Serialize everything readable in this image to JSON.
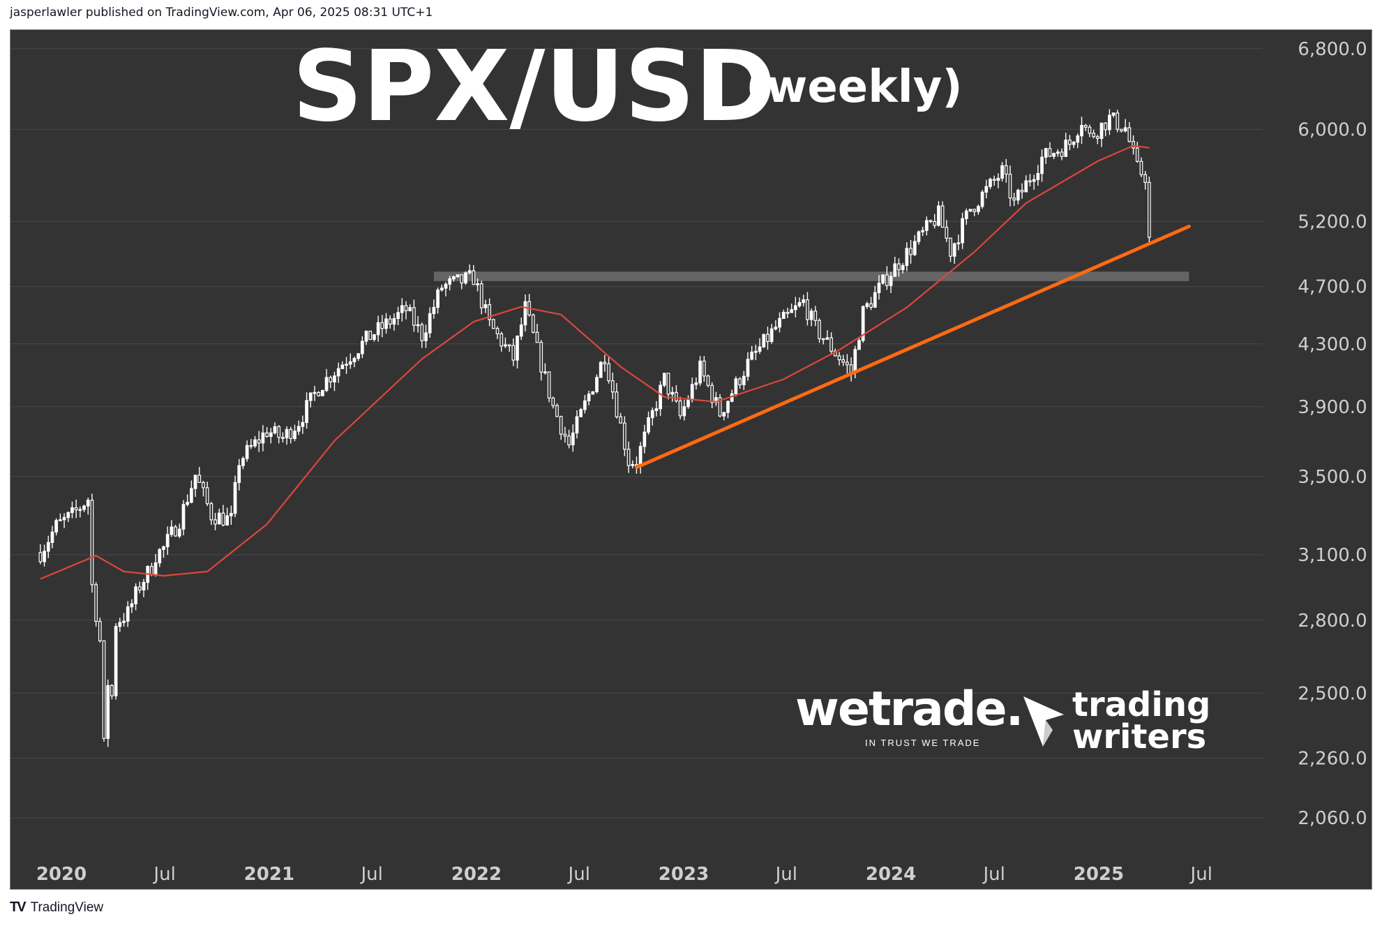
{
  "header": {
    "text": "jasperlawler published on TradingView.com, Apr 06, 2025 08:31 UTC+1"
  },
  "footer": {
    "brand_logo": "TV",
    "brand_name": "TradingView"
  },
  "watermarks": {
    "wetrade_name": "wetrade.",
    "wetrade_tagline": "IN TRUST WE TRADE",
    "trading_writers_line1": "trading",
    "trading_writers_line2": "writers"
  },
  "colors": {
    "background": "#333333",
    "candle": "#ffffff",
    "moving_average": "#e0463a",
    "trendline": "#ff6a13",
    "resistance_zone": "#6a6a6a",
    "gridline": "#4a4a4a",
    "axis_text": "#cfcfcf"
  },
  "chart_data": {
    "type": "candlestick",
    "title": "SPX/USD",
    "subtitle": "(weekly)",
    "y_scale": "log",
    "ylim": [
      1960,
      7000
    ],
    "x_range": [
      "2020-01-01",
      "2025-08-25"
    ],
    "y_ticks": [
      {
        "value": 6800,
        "label": "6,800.0"
      },
      {
        "value": 6000,
        "label": "6,000.0"
      },
      {
        "value": 5200,
        "label": "5,200.0"
      },
      {
        "value": 4700,
        "label": "4,700.0"
      },
      {
        "value": 4300,
        "label": "4,300.0"
      },
      {
        "value": 3900,
        "label": "3,900.0"
      },
      {
        "value": 3500,
        "label": "3,500.0"
      },
      {
        "value": 3100,
        "label": "3,100.0"
      },
      {
        "value": 2800,
        "label": "2,800.0"
      },
      {
        "value": 2500,
        "label": "2,500.0"
      },
      {
        "value": 2260,
        "label": "2,260.0"
      },
      {
        "value": 2060,
        "label": "2,060.0"
      }
    ],
    "x_ticks": [
      {
        "date": "2020-01-01",
        "label": "2020",
        "bold": true
      },
      {
        "date": "2020-07-01",
        "label": "Jul",
        "bold": false
      },
      {
        "date": "2021-01-01",
        "label": "2021",
        "bold": true
      },
      {
        "date": "2021-07-01",
        "label": "Jul",
        "bold": false
      },
      {
        "date": "2022-01-01",
        "label": "2022",
        "bold": true
      },
      {
        "date": "2022-07-01",
        "label": "Jul",
        "bold": false
      },
      {
        "date": "2023-01-01",
        "label": "2023",
        "bold": true
      },
      {
        "date": "2023-07-01",
        "label": "Jul",
        "bold": false
      },
      {
        "date": "2024-01-01",
        "label": "2024",
        "bold": true
      },
      {
        "date": "2024-07-01",
        "label": "Jul",
        "bold": false
      },
      {
        "date": "2025-01-01",
        "label": "2025",
        "bold": true
      },
      {
        "date": "2025-07-01",
        "label": "Jul",
        "bold": false
      }
    ],
    "close_path": [
      [
        "2019-11-25",
        3110
      ],
      [
        "2019-12-23",
        3240
      ],
      [
        "2020-01-20",
        3295
      ],
      [
        "2020-02-17",
        3380
      ],
      [
        "2020-02-24",
        2954
      ],
      [
        "2020-03-09",
        2711
      ],
      [
        "2020-03-16",
        2304
      ],
      [
        "2020-03-23",
        2541
      ],
      [
        "2020-03-30",
        2489
      ],
      [
        "2020-04-06",
        2790
      ],
      [
        "2020-04-27",
        2830
      ],
      [
        "2020-05-18",
        2955
      ],
      [
        "2020-06-08",
        3041
      ],
      [
        "2020-06-15",
        3097
      ],
      [
        "2020-06-29",
        3130
      ],
      [
        "2020-07-27",
        3271
      ],
      [
        "2020-08-24",
        3508
      ],
      [
        "2020-09-21",
        3298
      ],
      [
        "2020-10-26",
        3270
      ],
      [
        "2020-11-09",
        3585
      ],
      [
        "2020-12-28",
        3756
      ],
      [
        "2021-01-25",
        3714
      ],
      [
        "2021-02-22",
        3811
      ],
      [
        "2021-03-29",
        4019
      ],
      [
        "2021-05-10",
        4173
      ],
      [
        "2021-06-28",
        4352
      ],
      [
        "2021-08-30",
        4535
      ],
      [
        "2021-09-27",
        4357
      ],
      [
        "2021-11-01",
        4697
      ],
      [
        "2021-12-27",
        4766
      ],
      [
        "2022-01-24",
        4431
      ],
      [
        "2022-03-07",
        4204
      ],
      [
        "2022-03-28",
        4545
      ],
      [
        "2022-05-16",
        3901
      ],
      [
        "2022-06-13",
        3675
      ],
      [
        "2022-08-15",
        4228
      ],
      [
        "2022-09-26",
        3585
      ],
      [
        "2022-10-10",
        3583
      ],
      [
        "2022-11-28",
        4071
      ],
      [
        "2022-12-26",
        3839
      ],
      [
        "2023-01-30",
        4136
      ],
      [
        "2023-03-06",
        3861
      ],
      [
        "2023-04-24",
        4169
      ],
      [
        "2023-06-12",
        4409
      ],
      [
        "2023-07-31",
        4588
      ],
      [
        "2023-08-21",
        4405
      ],
      [
        "2023-10-23",
        4117
      ],
      [
        "2023-11-13",
        4514
      ],
      [
        "2023-12-25",
        4769
      ],
      [
        "2024-03-25",
        5254
      ],
      [
        "2024-04-15",
        4967
      ],
      [
        "2024-05-20",
        5304
      ],
      [
        "2024-07-15",
        5615
      ],
      [
        "2024-08-05",
        5344
      ],
      [
        "2024-09-23",
        5738
      ],
      [
        "2024-11-11",
        5870
      ],
      [
        "2024-12-02",
        6090
      ],
      [
        "2024-12-16",
        5930
      ],
      [
        "2025-01-20",
        6101
      ],
      [
        "2025-02-17",
        6013
      ],
      [
        "2025-03-10",
        5639
      ],
      [
        "2025-03-24",
        5580
      ],
      [
        "2025-03-31",
        5074
      ]
    ],
    "moving_average_path": [
      [
        "2019-11-25",
        2985
      ],
      [
        "2020-03-02",
        3095
      ],
      [
        "2020-04-20",
        3020
      ],
      [
        "2020-06-29",
        3000
      ],
      [
        "2020-09-14",
        3020
      ],
      [
        "2020-12-28",
        3250
      ],
      [
        "2021-04-26",
        3700
      ],
      [
        "2021-09-27",
        4200
      ],
      [
        "2021-12-27",
        4450
      ],
      [
        "2022-03-21",
        4555
      ],
      [
        "2022-05-30",
        4500
      ],
      [
        "2022-09-12",
        4150
      ],
      [
        "2022-11-28",
        3960
      ],
      [
        "2023-02-27",
        3930
      ],
      [
        "2023-06-26",
        4070
      ],
      [
        "2023-10-02",
        4260
      ],
      [
        "2024-01-29",
        4550
      ],
      [
        "2024-05-27",
        4960
      ],
      [
        "2024-08-26",
        5350
      ],
      [
        "2024-12-30",
        5710
      ],
      [
        "2025-03-03",
        5850
      ],
      [
        "2025-03-31",
        5830
      ]
    ],
    "resistance_zone": {
      "date_start": "2021-10-18",
      "date_end": "2025-06-09",
      "low": 4740,
      "high": 4810
    },
    "trendline": {
      "start": [
        "2022-10-10",
        3550
      ],
      "end": [
        "2025-06-09",
        5160
      ]
    }
  }
}
